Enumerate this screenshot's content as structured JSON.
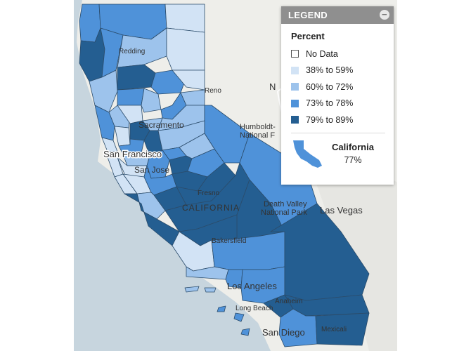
{
  "legend": {
    "header": "LEGEND",
    "collapse_icon": "minus-circle-icon",
    "title": "Percent",
    "items": [
      {
        "label": "No Data",
        "color": "#ffffff"
      },
      {
        "label": "38% to 59%",
        "color": "#d2e3f5"
      },
      {
        "label": "60% to 72%",
        "color": "#9dc3ec"
      },
      {
        "label": "73% to 78%",
        "color": "#4f92d9"
      },
      {
        "label": "79% to 89%",
        "color": "#245e91"
      }
    ],
    "state_name": "California",
    "state_value": "77%"
  },
  "map": {
    "land_color": "#eeeeea",
    "water_color": "#c7d5de",
    "labels": {
      "san_francisco": "San Francisco",
      "san_jose": "San Jose",
      "sacramento": "Sacramento",
      "redding": "Redding",
      "reno": "Reno",
      "fresno": "Fresno",
      "california": "CALIFORNIA",
      "bakersfield": "Bakersfield",
      "los_angeles": "Los Angeles",
      "long_beach": "Long Beach",
      "anaheim": "Anaheim",
      "san_diego": "San Diego",
      "mexicali": "Mexicali",
      "las_vegas": "Las Vegas",
      "humboldt": "Humboldt-",
      "humboldt2": "National F",
      "death_valley": "Death Valley",
      "death_valley2": "National Park",
      "nv": "N"
    }
  }
}
